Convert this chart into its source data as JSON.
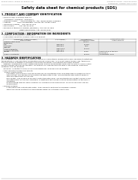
{
  "bg_color": "#ffffff",
  "header_left": "Product Name: Lithium Ion Battery Cell",
  "header_right_line1": "Substance number: SRF0489-00018",
  "header_right_line2": "Established / Revision: Dec.7.2016",
  "title": "Safety data sheet for chemical products (SDS)",
  "section1_title": "1. PRODUCT AND COMPANY IDENTIFICATION",
  "section1_lines": [
    "  • Product name: Lithium Ion Battery Cell",
    "  • Product code: Cylindrical-type cell",
    "      (UR18650A, UR18650L, UR18650A)",
    "  • Company name:      Sanyo Electric Co., Ltd., Mobile Energy Company",
    "  • Address:            2001, Kamikoritate, Sumoto-City, Hyogo, Japan",
    "  • Telephone number:   +81-799-26-4111",
    "  • Fax number:         +81-799-26-4129",
    "  • Emergency telephone number (Weekday): +81-799-26-3962",
    "                                   (Night and holiday): +81-799-26-4101"
  ],
  "section2_title": "2. COMPOSITION / INFORMATION ON INGREDIENTS",
  "section2_intro": "  • Substance or preparation: Preparation",
  "section2_sub": "  • Information about the chemical nature of product:",
  "table_col_headers1": [
    "Component / chemical name /",
    "CAS number /",
    "Concentration /",
    "Classification and"
  ],
  "table_col_headers2": [
    "Several name",
    "",
    "Concentration range",
    "hazard labeling"
  ],
  "table_rows": [
    [
      "Lithium cobalt oxide",
      "-",
      "30-60%",
      ""
    ],
    [
      "(LiMnCoO₄)",
      "",
      "",
      ""
    ],
    [
      "Iron",
      "7439-89-6",
      "10-25%",
      ""
    ],
    [
      "Aluminum",
      "7429-90-5",
      "2-5%",
      ""
    ],
    [
      "Graphite",
      "",
      "",
      ""
    ],
    [
      "(Hard a-graphite)",
      "77530-42-5",
      "10-20%",
      ""
    ],
    [
      "(Artificial graphite)",
      "7782-42-5",
      "",
      ""
    ],
    [
      "Copper",
      "7440-50-8",
      "5-15%",
      "Sensitization of the skin\ngroup No.2"
    ],
    [
      "Organic electrolyte",
      "-",
      "10-20%",
      "Inflammable liquid"
    ]
  ],
  "section3_title": "3. HAZARDS IDENTIFICATION",
  "section3_lines": [
    "For the battery cell, chemical materials are stored in a hermetically sealed metal case, designed to withstand",
    "temperatures or pressure-time combinations during normal use. As a result, during normal use, there is no",
    "physical danger of ignition or explosion and therefore danger of hazardous materials leakage.",
    "    However, if exposed to a fire, added mechanical shocks, decomposed, when electric shock in many cases,",
    "the gas release vent can be operated. The battery cell case will be breached or fire particles, hazardous",
    "materials may be released.",
    "    Moreover, if heated strongly by the surrounding fire, solid gas may be emitted."
  ],
  "section3_sub1": "  • Most important hazard and effects:",
  "section3_human": "      Human health effects:",
  "section3_human_lines": [
    "          Inhalation: The release of the electrolyte has an anesthesia action and stimulates in respiratory tract.",
    "          Skin contact: The release of the electrolyte stimulates a skin. The electrolyte skin contact causes a",
    "          sore and stimulation on the skin.",
    "          Eye contact: The release of the electrolyte stimulates eyes. The electrolyte eye contact causes a sore",
    "          and stimulation on the eye. Especially, a substance that causes a strong inflammation of the eyes is",
    "          contained.",
    "          Environmental effects: Since a battery cell remains in the environment, do not throw out it into the",
    "          environment."
  ],
  "section3_sub2": "  • Specific hazards:",
  "section3_specific": [
    "          If the electrolyte contacts with water, it will generate detrimental hydrogen fluoride.",
    "          Since the sealed electrolyte is inflammable liquid, do not bring close to fire."
  ]
}
